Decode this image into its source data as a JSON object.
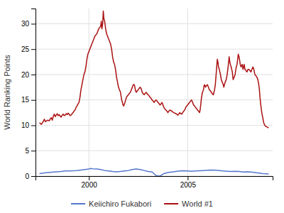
{
  "chart_data": {
    "type": "line",
    "ylabel": "World Ranking Points",
    "xlim": [
      1997.3,
      2009.3
    ],
    "ylim": [
      0,
      33
    ],
    "xticks": [
      2000,
      2005
    ],
    "yticks": [
      0,
      5,
      10,
      15,
      20,
      25,
      30
    ],
    "grid": true,
    "legend": "bottom",
    "series": [
      {
        "name": "Keiichiro Fukabori",
        "color": "#5577cc",
        "x": [
          1997.5,
          1997.7,
          1997.9,
          1998.0,
          1998.2,
          1998.4,
          1998.6,
          1998.8,
          1999.0,
          1999.2,
          1999.4,
          1999.6,
          1999.8,
          2000.0,
          2000.1,
          2000.2,
          2000.4,
          2000.6,
          2000.8,
          2001.0,
          2001.2,
          2001.4,
          2001.6,
          2001.8,
          2002.0,
          2002.2,
          2002.4,
          2002.6,
          2002.8,
          2003.0,
          2003.2,
          2003.4,
          2003.5,
          2003.6,
          2003.8,
          2004.0,
          2004.2,
          2004.4,
          2004.6,
          2004.8,
          2005.0,
          2005.2,
          2005.4,
          2005.6,
          2005.8,
          2006.0,
          2006.2,
          2006.4,
          2006.6,
          2006.8,
          2007.0,
          2007.2,
          2007.4,
          2007.6,
          2007.8,
          2008.0,
          2008.2,
          2008.4,
          2008.6,
          2008.8,
          2009.0,
          2009.1
        ],
        "values": [
          0.5,
          0.6,
          0.7,
          0.7,
          0.8,
          0.85,
          0.9,
          1.0,
          1.0,
          1.05,
          1.1,
          1.2,
          1.3,
          1.4,
          1.5,
          1.45,
          1.4,
          1.3,
          1.1,
          1.0,
          0.9,
          0.85,
          0.9,
          1.0,
          1.1,
          1.3,
          1.4,
          1.3,
          1.1,
          0.9,
          0.8,
          0.1,
          0.05,
          0.0,
          0.5,
          0.7,
          0.8,
          0.9,
          1.0,
          1.05,
          1.0,
          0.95,
          1.0,
          1.05,
          1.1,
          1.15,
          1.2,
          1.15,
          1.1,
          1.0,
          0.95,
          0.9,
          0.95,
          0.9,
          0.8,
          0.85,
          0.8,
          0.7,
          0.6,
          0.5,
          0.45,
          0.4
        ]
      },
      {
        "name": "World #1",
        "color": "#aa1111",
        "x": [
          1997.5,
          1997.6,
          1997.7,
          1997.75,
          1997.8,
          1997.9,
          1998.0,
          1998.05,
          1998.1,
          1998.15,
          1998.2,
          1998.25,
          1998.3,
          1998.35,
          1998.4,
          1998.45,
          1998.5,
          1998.55,
          1998.6,
          1998.65,
          1998.7,
          1998.75,
          1998.8,
          1998.85,
          1998.9,
          1998.95,
          1999.0,
          1999.05,
          1999.1,
          1999.15,
          1999.2,
          1999.25,
          1999.3,
          1999.35,
          1999.4,
          1999.45,
          1999.5,
          1999.55,
          1999.6,
          1999.65,
          1999.7,
          1999.75,
          1999.8,
          1999.85,
          1999.9,
          1999.95,
          2000.0,
          2000.05,
          2000.1,
          2000.15,
          2000.2,
          2000.25,
          2000.3,
          2000.35,
          2000.4,
          2000.45,
          2000.5,
          2000.55,
          2000.6,
          2000.63,
          2000.66,
          2000.7,
          2000.73,
          2000.76,
          2000.8,
          2000.85,
          2000.9,
          2000.95,
          2001.0,
          2001.05,
          2001.1,
          2001.15,
          2001.2,
          2001.25,
          2001.3,
          2001.35,
          2001.4,
          2001.45,
          2001.5,
          2001.55,
          2001.6,
          2001.63,
          2001.66,
          2001.7,
          2001.73,
          2001.76,
          2001.8,
          2001.85,
          2001.9,
          2001.95,
          2002.0,
          2002.05,
          2002.1,
          2002.15,
          2002.2,
          2002.25,
          2002.3,
          2002.33,
          2002.36,
          2002.4,
          2002.45,
          2002.5,
          2002.55,
          2002.6,
          2002.65,
          2002.7,
          2002.75,
          2002.8,
          2002.85,
          2002.9,
          2002.95,
          2003.0,
          2003.05,
          2003.1,
          2003.15,
          2003.2,
          2003.25,
          2003.3,
          2003.35,
          2003.4,
          2003.45,
          2003.5,
          2003.55,
          2003.6,
          2003.65,
          2003.7,
          2003.75,
          2003.8,
          2003.85,
          2003.9,
          2003.95,
          2004.0,
          2004.05,
          2004.1,
          2004.15,
          2004.2,
          2004.25,
          2004.3,
          2004.35,
          2004.4,
          2004.45,
          2004.5,
          2004.55,
          2004.6,
          2004.65,
          2004.7,
          2004.75,
          2004.8,
          2004.85,
          2004.9,
          2004.95,
          2005.0,
          2005.05,
          2005.1,
          2005.15,
          2005.2,
          2005.25,
          2005.3,
          2005.35,
          2005.4,
          2005.45,
          2005.5,
          2005.55,
          2005.6,
          2005.63,
          2005.66,
          2005.7,
          2005.75,
          2005.8,
          2005.83,
          2005.86,
          2005.9,
          2005.95,
          2006.0,
          2006.05,
          2006.1,
          2006.15,
          2006.2,
          2006.25,
          2006.3,
          2006.33,
          2006.36,
          2006.4,
          2006.43,
          2006.46,
          2006.5,
          2006.53,
          2006.56,
          2006.6,
          2006.63,
          2006.66,
          2006.7,
          2006.75,
          2006.8,
          2006.83,
          2006.86,
          2006.9,
          2006.95,
          2007.0,
          2007.03,
          2007.06,
          2007.1,
          2007.13,
          2007.16,
          2007.2,
          2007.23,
          2007.26,
          2007.3,
          2007.33,
          2007.36,
          2007.4,
          2007.43,
          2007.46,
          2007.5,
          2007.53,
          2007.56,
          2007.6,
          2007.63,
          2007.66,
          2007.7,
          2007.73,
          2007.76,
          2007.8,
          2007.83,
          2007.86,
          2007.9,
          2007.95,
          2008.0,
          2008.05,
          2008.1,
          2008.15,
          2008.2,
          2008.25,
          2008.3,
          2008.35,
          2008.4,
          2008.45,
          2008.5,
          2008.55,
          2008.6,
          2008.63,
          2008.66,
          2008.7,
          2008.75,
          2008.8,
          2008.85,
          2008.9,
          2008.95,
          2009.0,
          2009.1
        ],
        "values": [
          10.5,
          10.2,
          10.8,
          11.2,
          10.7,
          11.0,
          10.9,
          11.3,
          11.5,
          11.0,
          11.8,
          12.2,
          11.7,
          12.0,
          12.3,
          11.9,
          12.1,
          11.8,
          11.6,
          12.0,
          12.2,
          11.9,
          12.0,
          12.3,
          12.1,
          12.4,
          12.2,
          11.9,
          12.0,
          12.3,
          12.5,
          12.8,
          13.0,
          13.5,
          13.8,
          14.2,
          14.5,
          15.5,
          17.0,
          18.0,
          19.0,
          20.0,
          20.5,
          21.5,
          23.0,
          24.0,
          24.5,
          25.0,
          25.5,
          26.0,
          26.5,
          27.0,
          27.5,
          27.8,
          28.0,
          28.5,
          29.0,
          29.3,
          29.5,
          30.5,
          29.0,
          30.0,
          32.5,
          31.0,
          30.5,
          29.0,
          28.0,
          27.5,
          27.0,
          26.5,
          26.0,
          25.0,
          23.5,
          22.5,
          22.0,
          21.0,
          19.5,
          18.5,
          17.5,
          17.0,
          16.5,
          15.8,
          15.0,
          14.5,
          14.0,
          13.8,
          14.2,
          14.8,
          15.5,
          15.8,
          16.0,
          16.3,
          16.5,
          17.0,
          17.5,
          18.0,
          18.0,
          17.5,
          16.8,
          16.5,
          16.8,
          17.0,
          17.3,
          17.5,
          17.2,
          16.5,
          16.2,
          16.0,
          16.3,
          16.5,
          16.2,
          16.0,
          15.8,
          15.5,
          15.3,
          15.0,
          14.8,
          14.5,
          14.8,
          15.0,
          14.8,
          14.5,
          14.3,
          14.0,
          14.2,
          14.5,
          14.0,
          13.5,
          13.2,
          13.0,
          12.8,
          12.5,
          12.8,
          13.0,
          12.9,
          12.8,
          12.6,
          12.5,
          12.4,
          12.3,
          12.2,
          12.0,
          12.2,
          12.5,
          12.3,
          12.2,
          12.5,
          12.8,
          13.0,
          13.5,
          13.8,
          14.0,
          14.3,
          14.5,
          14.8,
          15.0,
          14.5,
          14.0,
          13.8,
          13.5,
          13.3,
          13.0,
          12.8,
          12.5,
          13.0,
          14.0,
          15.5,
          16.5,
          17.0,
          17.8,
          18.0,
          17.5,
          17.8,
          18.0,
          17.5,
          17.0,
          16.8,
          16.5,
          16.2,
          16.0,
          16.5,
          17.0,
          18.0,
          19.5,
          21.0,
          23.0,
          22.5,
          21.5,
          21.0,
          20.5,
          20.0,
          19.0,
          18.5,
          18.0,
          17.5,
          18.0,
          18.5,
          19.0,
          20.0,
          21.0,
          22.0,
          23.5,
          22.5,
          22.0,
          21.5,
          21.0,
          20.5,
          19.0,
          19.3,
          19.5,
          20.0,
          20.8,
          21.5,
          22.0,
          23.0,
          24.0,
          23.5,
          22.8,
          22.0,
          21.5,
          21.8,
          22.0,
          21.0,
          21.5,
          22.0,
          21.0,
          20.8,
          20.5,
          21.0,
          21.0,
          20.8,
          20.5,
          21.0,
          21.5,
          21.0,
          20.0,
          19.8,
          19.5,
          19.0,
          18.0,
          17.0,
          15.5,
          14.0,
          12.5,
          11.5,
          10.5,
          10.0,
          9.8,
          9.7,
          9.5
        ]
      }
    ]
  }
}
